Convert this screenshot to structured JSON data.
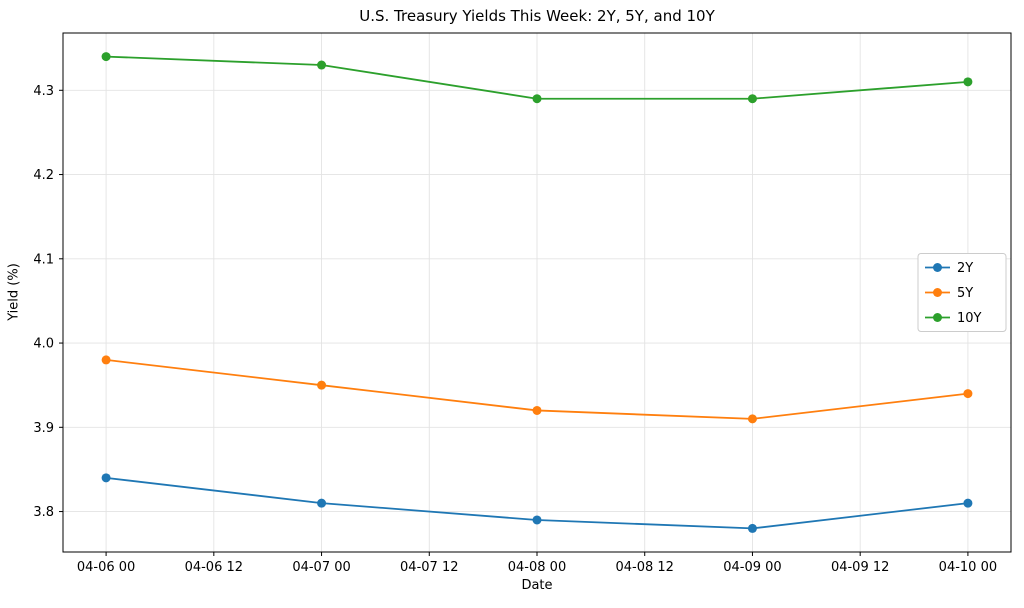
{
  "chart_data": {
    "type": "line",
    "title": "U.S. Treasury Yields This Week: 2Y, 5Y, and 10Y",
    "xlabel": "Date",
    "ylabel": "Yield (%)",
    "categories": [
      "04-06 00",
      "04-07 00",
      "04-08 00",
      "04-09 00",
      "04-10 00"
    ],
    "series": [
      {
        "name": "2Y",
        "color": "#1f77b4",
        "values": [
          3.84,
          3.81,
          3.79,
          3.78,
          3.81
        ]
      },
      {
        "name": "5Y",
        "color": "#ff7f0e",
        "values": [
          3.98,
          3.95,
          3.92,
          3.91,
          3.94
        ]
      },
      {
        "name": "10Y",
        "color": "#2ca02c",
        "values": [
          4.34,
          4.33,
          4.29,
          4.29,
          4.31
        ]
      }
    ],
    "x_ticks": [
      0,
      0.5,
      1,
      1.5,
      2,
      2.5,
      3,
      3.5,
      4
    ],
    "x_tick_labels": [
      "04-06 00",
      "04-06 12",
      "04-07 00",
      "04-07 12",
      "04-08 00",
      "04-08 12",
      "04-09 00",
      "04-09 12",
      "04-10 00"
    ],
    "y_ticks": [
      3.8,
      3.9,
      4.0,
      4.1,
      4.2,
      4.3
    ],
    "y_tick_labels": [
      "3.8",
      "3.9",
      "4.0",
      "4.1",
      "4.2",
      "4.3"
    ],
    "xlim": [
      -0.2,
      4.2
    ],
    "ylim": [
      3.752,
      4.368
    ],
    "grid": true,
    "legend": {
      "position": "center right",
      "entries": [
        "2Y",
        "5Y",
        "10Y"
      ]
    }
  }
}
